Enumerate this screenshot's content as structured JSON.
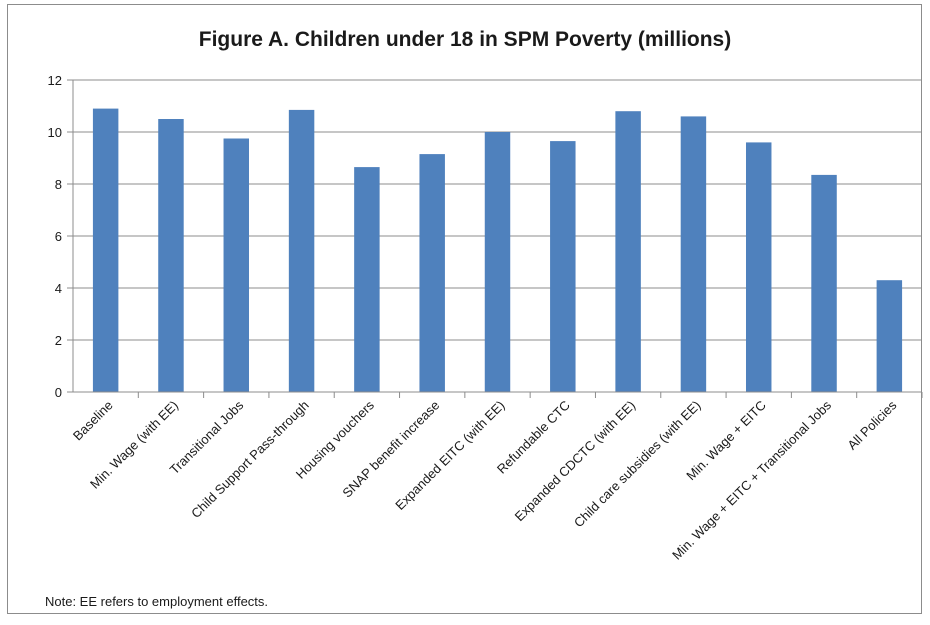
{
  "chart_data": {
    "type": "bar",
    "title": "Figure A. Children under 18 in SPM Poverty (millions)",
    "xlabel": "",
    "ylabel": "",
    "ylim": [
      0,
      12
    ],
    "yticks": [
      0,
      2,
      4,
      6,
      8,
      10,
      12
    ],
    "grid": true,
    "legend": "none",
    "bar_color": "#4f81bd",
    "categories": [
      "Baseline",
      "Min. Wage (with EE)",
      "Transitional Jobs",
      "Child Support Pass-through",
      "Housing vouchers",
      "SNAP benefit increase",
      "Expanded EITC (with EE)",
      "Refundable CTC",
      "Expanded CDCTC (with EE)",
      "Child care subsidies (with EE)",
      "Min. Wage + EITC",
      "Min. Wage + EITC + Transitional Jobs",
      "All Policies"
    ],
    "values": [
      10.9,
      10.5,
      9.75,
      10.85,
      8.65,
      9.15,
      10.0,
      9.65,
      10.8,
      10.6,
      9.6,
      8.35,
      4.3
    ]
  },
  "note": "Note:  EE refers to employment effects."
}
